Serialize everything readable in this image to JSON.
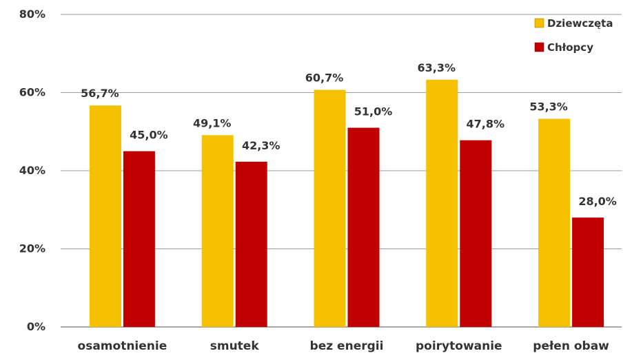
{
  "chart_data": {
    "type": "bar",
    "title": "",
    "xlabel": "",
    "ylabel": "",
    "ylim": [
      0,
      80
    ],
    "yticks": [
      0,
      20,
      40,
      60,
      80
    ],
    "ytick_labels": [
      "0%",
      "20%",
      "40%",
      "60%",
      "80%"
    ],
    "grid": true,
    "legend": "top-right",
    "categories": [
      "osamotnienie",
      "smutek",
      "bez energii",
      "poirytowanie",
      "pełen obaw"
    ],
    "series": [
      {
        "name": "Dziewczęta",
        "color": "#f5c000",
        "values": [
          56.7,
          49.1,
          60.7,
          63.3,
          53.3
        ],
        "labels": [
          "56,7%",
          "49,1%",
          "60,7%",
          "63,3%",
          "53,3%"
        ]
      },
      {
        "name": "Chłopcy",
        "color": "#c00000",
        "values": [
          45.0,
          42.3,
          51.0,
          47.8,
          28.0
        ],
        "labels": [
          "45,0%",
          "42,3%",
          "51,0%",
          "47,8%",
          "28,0%"
        ]
      }
    ]
  }
}
